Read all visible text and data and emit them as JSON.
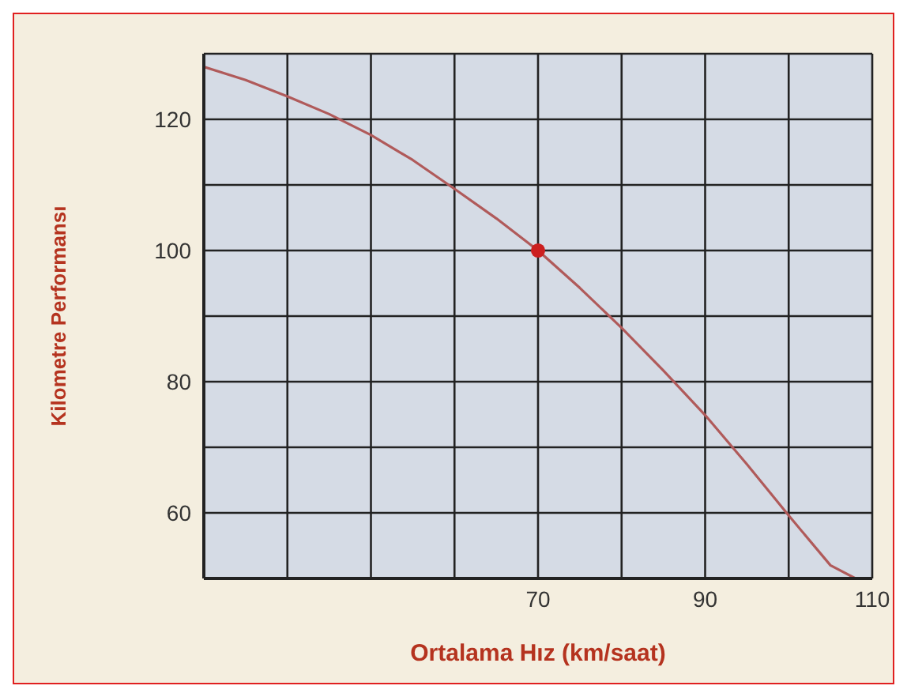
{
  "chart_data": {
    "type": "line",
    "xlabel": "Ortalama Hız (km/saat)",
    "ylabel": "Kilometre Performansı",
    "xlim": [
      30,
      110
    ],
    "ylim": [
      50,
      130
    ],
    "xticks": [
      {
        "value": 30,
        "label": null
      },
      {
        "value": 40,
        "label": null
      },
      {
        "value": 50,
        "label": null
      },
      {
        "value": 60,
        "label": null
      },
      70,
      {
        "value": 80,
        "label": null
      },
      90,
      {
        "value": 100,
        "label": null
      },
      110
    ],
    "yticks": [
      {
        "value": 50,
        "label": null
      },
      60,
      {
        "value": 70,
        "label": null
      },
      80,
      {
        "value": 90,
        "label": null
      },
      100,
      {
        "value": 110,
        "label": null
      },
      120,
      {
        "value": 130,
        "label": null
      }
    ],
    "grid": true,
    "series": [
      {
        "color": "#b05a5a",
        "marker": "none",
        "x": [
          30,
          35,
          40,
          45,
          50,
          55,
          60,
          65,
          70,
          75,
          80,
          85,
          90,
          95,
          100,
          105,
          108
        ],
        "values": [
          128,
          126,
          123.5,
          120.8,
          117.6,
          113.8,
          109.4,
          104.9,
          100,
          94.3,
          88.2,
          81.7,
          74.9,
          67.4,
          59.6,
          52,
          50
        ]
      },
      {
        "type": "scatter",
        "color": "#cc1f1f",
        "marker": "circle",
        "x": [
          70
        ],
        "values": [
          100
        ]
      }
    ]
  }
}
